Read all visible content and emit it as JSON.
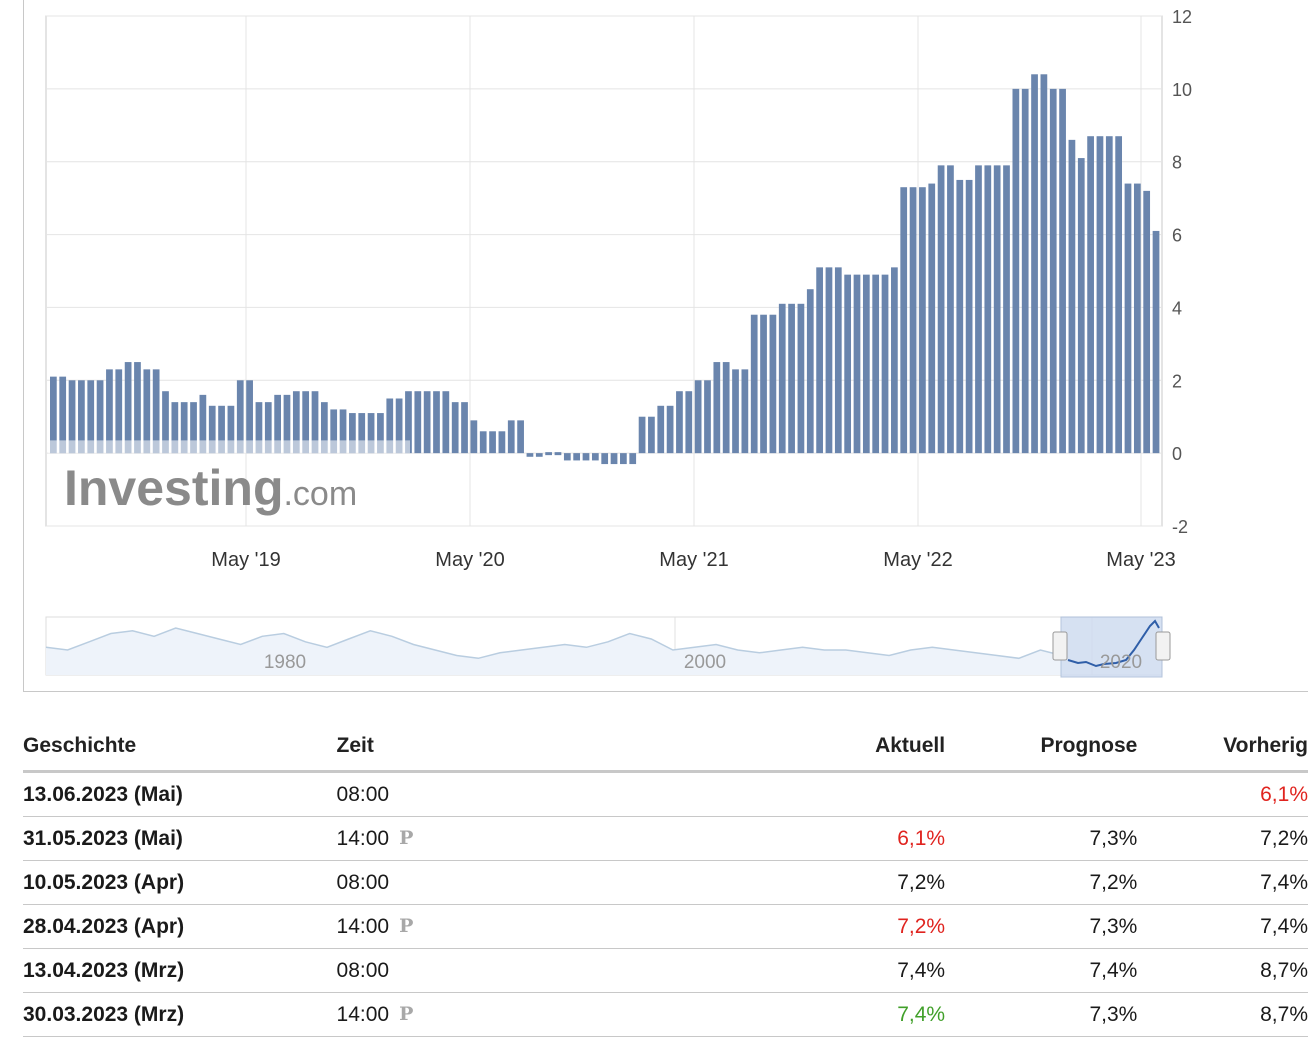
{
  "colors": {
    "bar": "#6a85ad",
    "gridline": "#e4e4e4",
    "negative_text": "#e0241f",
    "positive_text": "#41a02a",
    "nav_line": "#b9cde0",
    "nav_selected": "#2f5ea8"
  },
  "watermark": {
    "brand": "Investing",
    "suffix": ".com"
  },
  "navigator": {
    "labels": [
      "1980",
      "2000",
      "2020"
    ]
  },
  "chart_data": {
    "type": "bar",
    "ylim": [
      -2,
      12
    ],
    "y_ticks": [
      "12",
      "10",
      "8",
      "6",
      "4",
      "2",
      "0",
      "-2"
    ],
    "x_ticks": [
      "May '19",
      "May '20",
      "May '21",
      "May '22",
      "May '23"
    ],
    "grid": true,
    "y_axis_side": "right",
    "values": [
      2.1,
      2.1,
      2.0,
      2.0,
      2.0,
      2.0,
      2.3,
      2.3,
      2.5,
      2.5,
      2.3,
      2.3,
      1.7,
      1.4,
      1.4,
      1.4,
      1.6,
      1.3,
      1.3,
      1.3,
      2.0,
      2.0,
      1.4,
      1.4,
      1.6,
      1.6,
      1.7,
      1.7,
      1.7,
      1.4,
      1.2,
      1.2,
      1.1,
      1.1,
      1.1,
      1.1,
      1.5,
      1.5,
      1.7,
      1.7,
      1.7,
      1.7,
      1.7,
      1.4,
      1.4,
      0.9,
      0.6,
      0.6,
      0.6,
      0.9,
      0.9,
      -0.1,
      -0.1,
      0.0,
      0.0,
      -0.2,
      -0.2,
      -0.2,
      -0.2,
      -0.3,
      -0.3,
      -0.3,
      -0.3,
      1.0,
      1.0,
      1.3,
      1.3,
      1.7,
      1.7,
      2.0,
      2.0,
      2.5,
      2.5,
      2.3,
      2.3,
      3.8,
      3.8,
      3.8,
      4.1,
      4.1,
      4.1,
      4.5,
      5.1,
      5.1,
      5.1,
      4.9,
      4.9,
      4.9,
      4.9,
      4.9,
      5.1,
      7.3,
      7.3,
      7.3,
      7.4,
      7.9,
      7.9,
      7.5,
      7.5,
      7.9,
      7.9,
      7.9,
      7.9,
      10.0,
      10.0,
      10.4,
      10.4,
      10.0,
      10.0,
      8.6,
      8.1,
      8.7,
      8.7,
      8.7,
      8.7,
      7.4,
      7.4,
      7.2,
      6.1
    ]
  },
  "table": {
    "headers": {
      "history": "Geschichte",
      "time": "Zeit",
      "actual": "Aktuell",
      "forecast": "Prognose",
      "previous": "Vorherig"
    },
    "preliminary_icon": "P",
    "rows": [
      {
        "date": "13.06.2023 (Mai)",
        "time": "08:00",
        "preliminary": false,
        "actual": "",
        "actual_color": "",
        "forecast": "",
        "previous": "6,1%",
        "previous_color": "red"
      },
      {
        "date": "31.05.2023 (Mai)",
        "time": "14:00",
        "preliminary": true,
        "actual": "6,1%",
        "actual_color": "red",
        "forecast": "7,3%",
        "previous": "7,2%",
        "previous_color": ""
      },
      {
        "date": "10.05.2023 (Apr)",
        "time": "08:00",
        "preliminary": false,
        "actual": "7,2%",
        "actual_color": "",
        "forecast": "7,2%",
        "previous": "7,4%",
        "previous_color": ""
      },
      {
        "date": "28.04.2023 (Apr)",
        "time": "14:00",
        "preliminary": true,
        "actual": "7,2%",
        "actual_color": "red",
        "forecast": "7,3%",
        "previous": "7,4%",
        "previous_color": ""
      },
      {
        "date": "13.04.2023 (Mrz)",
        "time": "08:00",
        "preliminary": false,
        "actual": "7,4%",
        "actual_color": "",
        "forecast": "7,4%",
        "previous": "8,7%",
        "previous_color": ""
      },
      {
        "date": "30.03.2023 (Mrz)",
        "time": "14:00",
        "preliminary": true,
        "actual": "7,4%",
        "actual_color": "green",
        "forecast": "7,3%",
        "previous": "8,7%",
        "previous_color": ""
      }
    ]
  }
}
